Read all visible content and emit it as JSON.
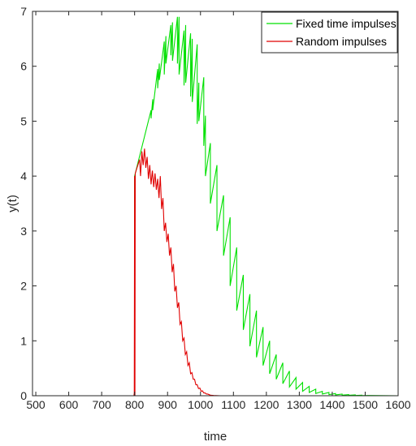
{
  "chart_data": {
    "type": "line",
    "title": "",
    "xlabel": "time",
    "ylabel": "y(t)",
    "xlim": [
      490,
      1600
    ],
    "ylim": [
      0,
      7
    ],
    "xticks": [
      500,
      600,
      700,
      800,
      900,
      1000,
      1100,
      1200,
      1300,
      1400,
      1500,
      1600
    ],
    "yticks": [
      0,
      1,
      2,
      3,
      4,
      5,
      6,
      7
    ],
    "grid": false,
    "legend_position": "top-right",
    "series": [
      {
        "name": "Fixed time impulses",
        "color": "#00e000",
        "x": [
          490,
          799.9,
          800,
          850,
          850,
          855,
          855,
          870,
          870,
          875,
          875,
          890,
          890,
          895,
          895,
          910,
          910,
          915,
          915,
          930,
          930,
          935,
          935,
          950,
          950,
          955,
          955,
          970,
          970,
          975,
          975,
          990,
          990,
          995,
          995,
          1010,
          1010,
          1015,
          1015,
          1030,
          1030,
          1050,
          1050,
          1070,
          1070,
          1090,
          1090,
          1110,
          1110,
          1130,
          1130,
          1150,
          1150,
          1170,
          1170,
          1190,
          1190,
          1210,
          1210,
          1230,
          1230,
          1250,
          1250,
          1270,
          1270,
          1290,
          1290,
          1310,
          1310,
          1330,
          1330,
          1350,
          1350,
          1370,
          1370,
          1390,
          1390,
          1410,
          1410,
          1430,
          1430,
          1450,
          1450,
          1470,
          1470,
          1490,
          1490,
          1510,
          1600
        ],
        "y": [
          0,
          0,
          4.0,
          5.2,
          5.05,
          5.4,
          5.2,
          5.95,
          5.6,
          6.05,
          5.75,
          6.45,
          5.85,
          6.55,
          6.05,
          6.75,
          6.2,
          6.8,
          6.1,
          6.9,
          6.05,
          6.9,
          5.85,
          6.65,
          5.65,
          6.75,
          5.7,
          6.6,
          5.45,
          6.5,
          5.35,
          6.4,
          4.95,
          5.7,
          5.0,
          5.8,
          4.55,
          5.1,
          4.0,
          4.6,
          3.5,
          4.2,
          3.0,
          3.65,
          2.55,
          3.25,
          2.0,
          2.7,
          1.55,
          2.2,
          1.2,
          1.85,
          0.9,
          1.55,
          0.7,
          1.25,
          0.55,
          1.0,
          0.4,
          0.75,
          0.3,
          0.6,
          0.22,
          0.45,
          0.16,
          0.33,
          0.12,
          0.24,
          0.08,
          0.17,
          0.06,
          0.12,
          0.04,
          0.08,
          0.03,
          0.06,
          0.02,
          0.04,
          0.015,
          0.03,
          0.01,
          0.02,
          0.008,
          0.015,
          0.005,
          0.01,
          0.003,
          0.005,
          0.0
        ]
      },
      {
        "name": "Random impulses",
        "color": "#e00000",
        "x": [
          490,
          798,
          799,
          800,
          801,
          802,
          815,
          818,
          822,
          826,
          830,
          834,
          838,
          842,
          846,
          850,
          854,
          858,
          862,
          866,
          870,
          874,
          878,
          882,
          886,
          890,
          894,
          898,
          902,
          906,
          910,
          914,
          918,
          922,
          926,
          930,
          934,
          938,
          942,
          946,
          950,
          954,
          958,
          962,
          966,
          970,
          974,
          978,
          982,
          986,
          990,
          994,
          998,
          1002,
          1006,
          1010,
          1014,
          1018,
          1022,
          1030,
          1040,
          1060,
          1600
        ],
        "y": [
          0,
          0,
          0.05,
          4.0,
          0.0,
          4.05,
          4.3,
          4.0,
          4.45,
          4.2,
          4.5,
          4.15,
          4.35,
          3.95,
          4.2,
          3.85,
          4.1,
          3.8,
          4.05,
          3.75,
          3.95,
          3.6,
          4.0,
          3.4,
          3.6,
          3.0,
          3.15,
          2.8,
          2.95,
          2.55,
          2.7,
          2.25,
          2.4,
          1.9,
          2.0,
          1.6,
          1.7,
          1.3,
          1.35,
          1.0,
          1.05,
          0.75,
          0.8,
          0.55,
          0.6,
          0.4,
          0.42,
          0.3,
          0.3,
          0.2,
          0.2,
          0.13,
          0.14,
          0.08,
          0.09,
          0.05,
          0.05,
          0.03,
          0.03,
          0.01,
          0.005,
          0.0,
          0.0
        ]
      }
    ]
  }
}
